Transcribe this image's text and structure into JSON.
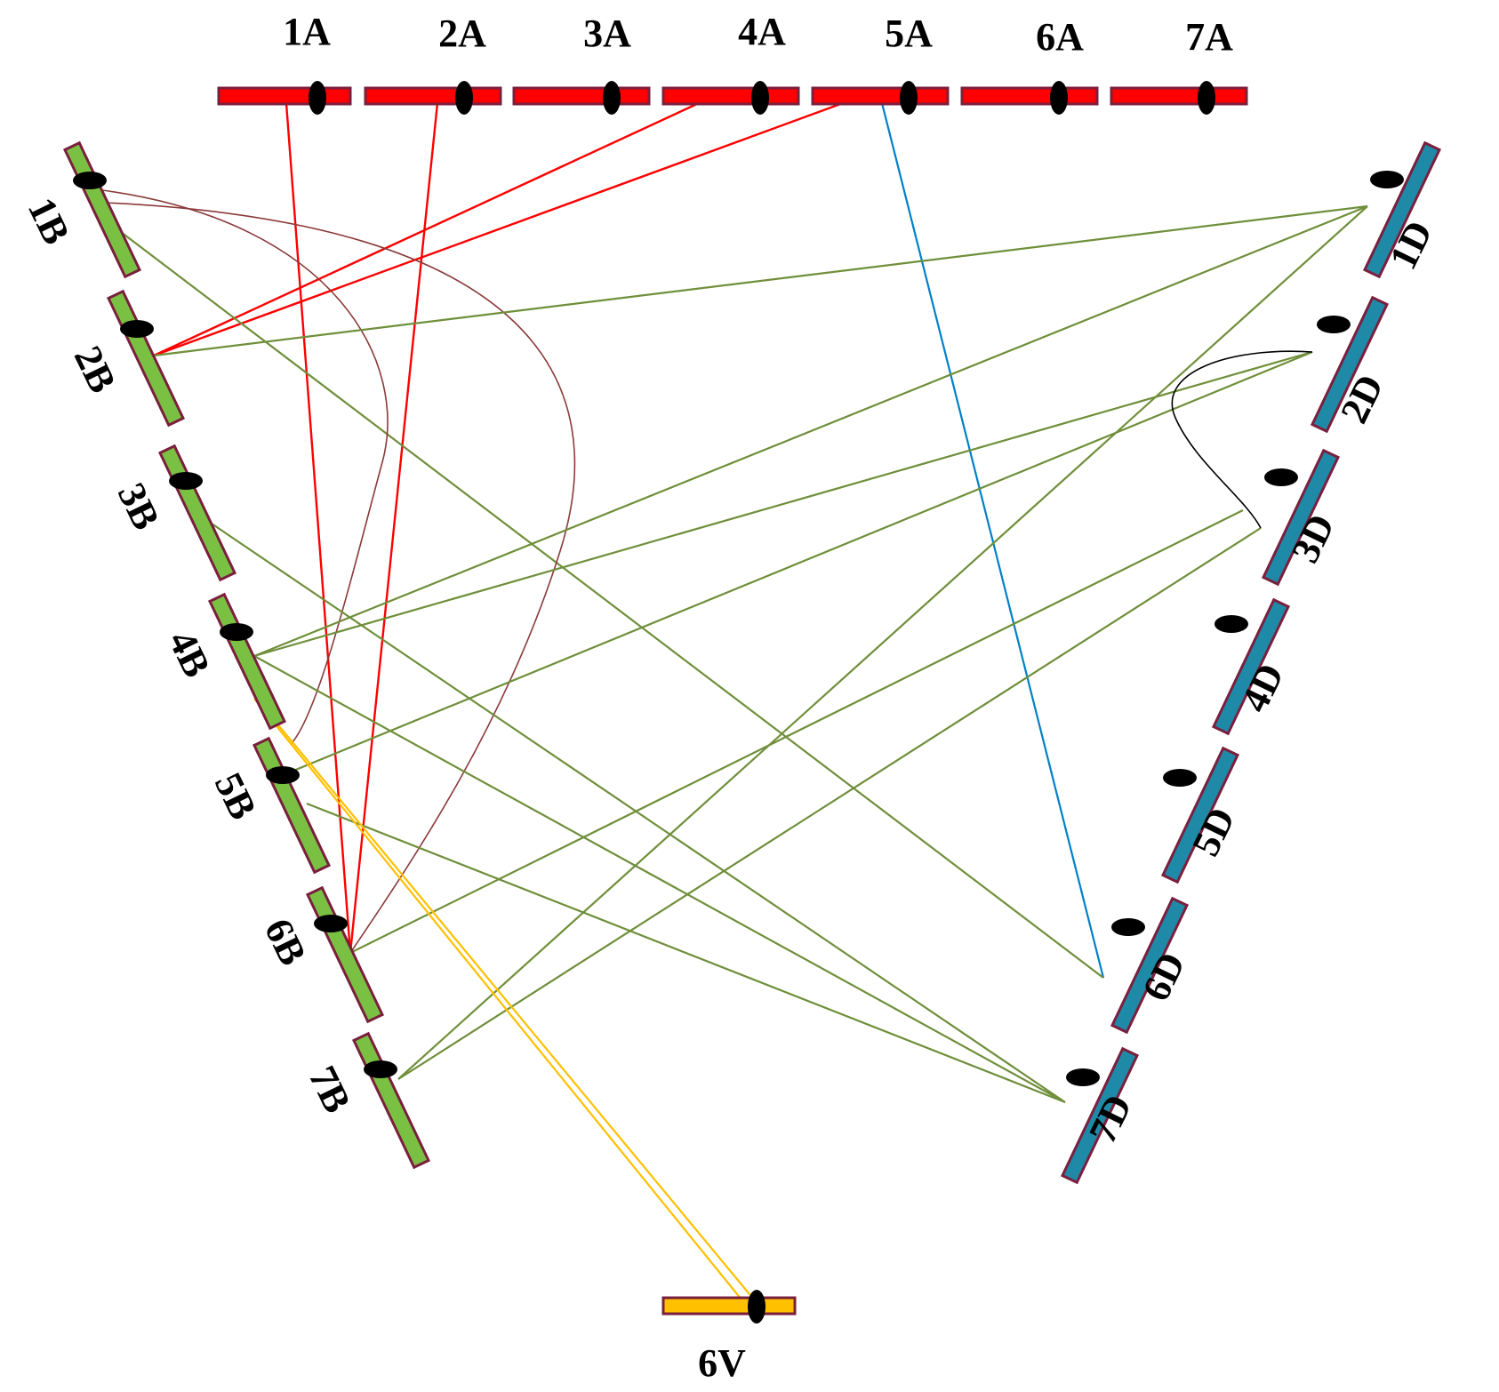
{
  "colors": {
    "a_genome": "#ff0000",
    "b_genome": "#7ac143",
    "d_genome": "#1f8aa8",
    "v_genome": "#ffc000",
    "outline": "#7a1f3d",
    "centromere": "#000000",
    "link_a": "#ff0000",
    "link_green": "#6f8f3a",
    "link_blue": "#0080c8",
    "link_brown": "#8b3a3a",
    "link_black": "#000000",
    "link_yellow": "#ffc000"
  },
  "chromosomes": {
    "A": [
      "1A",
      "2A",
      "3A",
      "4A",
      "5A",
      "6A",
      "7A"
    ],
    "B": [
      "1B",
      "2B",
      "3B",
      "4B",
      "5B",
      "6B",
      "7B"
    ],
    "D": [
      "1D",
      "2D",
      "3D",
      "4D",
      "5D",
      "6D",
      "7D"
    ],
    "V": [
      "6V"
    ]
  },
  "links": [
    {
      "from": "1A",
      "to": "6B",
      "type": "A"
    },
    {
      "from": "2A",
      "to": "6B",
      "type": "A"
    },
    {
      "from": "4A",
      "to": "2B",
      "type": "A"
    },
    {
      "from": "5A",
      "to": "2B",
      "type": "A"
    },
    {
      "from": "5A",
      "to": "6D",
      "type": "blue"
    },
    {
      "from": "1B",
      "to": "6D",
      "type": "green"
    },
    {
      "from": "1B",
      "to": "5B",
      "type": "brown"
    },
    {
      "from": "1B",
      "to": "6B",
      "type": "brown"
    },
    {
      "from": "2B",
      "to": "1D",
      "type": "green"
    },
    {
      "from": "3B",
      "to": "7D",
      "type": "green"
    },
    {
      "from": "4B",
      "to": "1D",
      "type": "green"
    },
    {
      "from": "4B",
      "to": "2D",
      "type": "green"
    },
    {
      "from": "4B",
      "to": "7D",
      "type": "green"
    },
    {
      "from": "5B",
      "to": "2D",
      "type": "green"
    },
    {
      "from": "5B",
      "to": "7D",
      "type": "green"
    },
    {
      "from": "6B",
      "to": "3D",
      "type": "green"
    },
    {
      "from": "7B",
      "to": "1D",
      "type": "green"
    },
    {
      "from": "7B",
      "to": "3D",
      "type": "green"
    },
    {
      "from": "2D",
      "to": "3D",
      "type": "black"
    },
    {
      "from": "4B",
      "to": "6V",
      "type": "yellow"
    },
    {
      "from": "4B",
      "to": "6V",
      "type": "yellow"
    }
  ]
}
